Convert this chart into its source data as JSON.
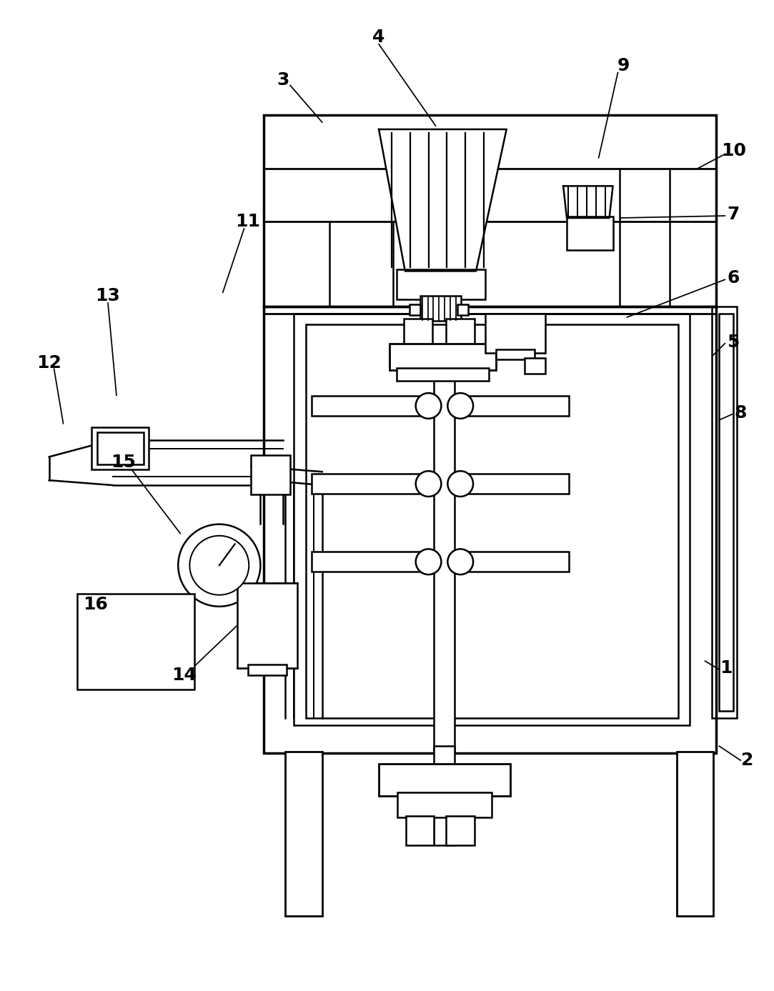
{
  "background_color": "#ffffff",
  "line_color": "#000000",
  "lw": 1.8,
  "fig_width": 10.83,
  "fig_height": 13.87
}
